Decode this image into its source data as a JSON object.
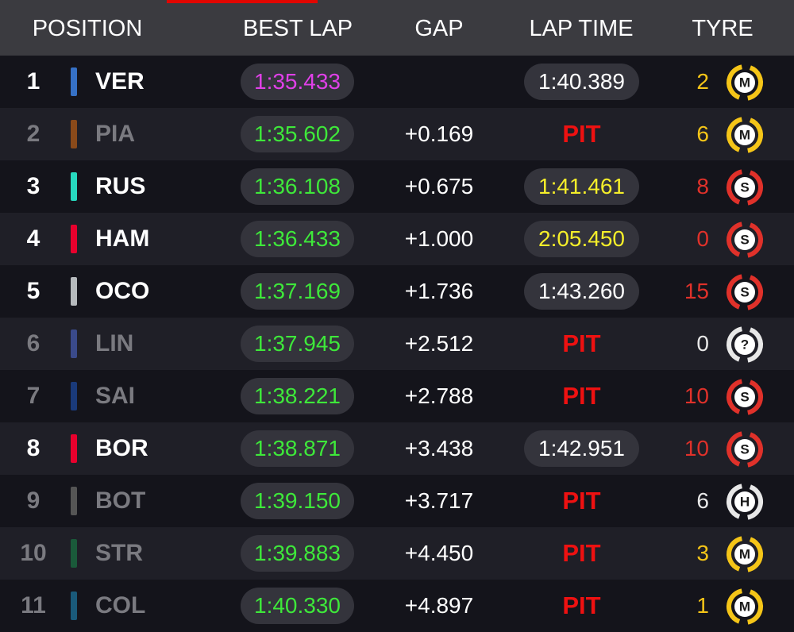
{
  "header": {
    "columns": [
      "POSITION",
      "BEST LAP",
      "GAP",
      "LAP TIME",
      "TYRE"
    ]
  },
  "rows": [
    {
      "position": "1",
      "team_color": "#3671c6",
      "driver": "VER",
      "dimmed": false,
      "best_lap": "1:35.433",
      "best_lap_color": "#e040e8",
      "gap": null,
      "lap_time": "1:40.389",
      "lap_time_color": "#ffffff",
      "lap_time_pill": true,
      "tyre_laps": "2",
      "tyre": "M",
      "tyre_color": "#f5c518"
    },
    {
      "position": "2",
      "team_color": "#8a4a1a",
      "driver": "PIA",
      "dimmed": true,
      "best_lap": "1:35.602",
      "best_lap_color": "#3ee83a",
      "gap": "+0.169",
      "lap_time": "PIT",
      "lap_time_color": "#ee1111",
      "lap_time_pill": false,
      "tyre_laps": "6",
      "tyre": "M",
      "tyre_color": "#f5c518"
    },
    {
      "position": "3",
      "team_color": "#27d9bf",
      "driver": "RUS",
      "dimmed": false,
      "best_lap": "1:36.108",
      "best_lap_color": "#3ee83a",
      "gap": "+0.675",
      "lap_time": "1:41.461",
      "lap_time_color": "#f5ee2a",
      "lap_time_pill": true,
      "tyre_laps": "8",
      "tyre": "S",
      "tyre_color": "#e0312a"
    },
    {
      "position": "4",
      "team_color": "#e8002d",
      "driver": "HAM",
      "dimmed": false,
      "best_lap": "1:36.433",
      "best_lap_color": "#3ee83a",
      "gap": "+1.000",
      "lap_time": "2:05.450",
      "lap_time_color": "#f5ee2a",
      "lap_time_pill": true,
      "tyre_laps": "0",
      "tyre": "S",
      "tyre_color": "#e0312a"
    },
    {
      "position": "5",
      "team_color": "#b6babd",
      "driver": "OCO",
      "dimmed": false,
      "best_lap": "1:37.169",
      "best_lap_color": "#3ee83a",
      "gap": "+1.736",
      "lap_time": "1:43.260",
      "lap_time_color": "#ffffff",
      "lap_time_pill": true,
      "tyre_laps": "15",
      "tyre": "S",
      "tyre_color": "#e0312a"
    },
    {
      "position": "6",
      "team_color": "#3a4a8a",
      "driver": "LIN",
      "dimmed": true,
      "best_lap": "1:37.945",
      "best_lap_color": "#3ee83a",
      "gap": "+2.512",
      "lap_time": "PIT",
      "lap_time_color": "#ee1111",
      "lap_time_pill": false,
      "tyre_laps": "0",
      "tyre": "?",
      "tyre_color": "#e8e8e8"
    },
    {
      "position": "7",
      "team_color": "#1a3a7a",
      "driver": "SAI",
      "dimmed": true,
      "best_lap": "1:38.221",
      "best_lap_color": "#3ee83a",
      "gap": "+2.788",
      "lap_time": "PIT",
      "lap_time_color": "#ee1111",
      "lap_time_pill": false,
      "tyre_laps": "10",
      "tyre": "S",
      "tyre_color": "#e0312a"
    },
    {
      "position": "8",
      "team_color": "#e8002d",
      "driver": "BOR",
      "dimmed": false,
      "best_lap": "1:38.871",
      "best_lap_color": "#3ee83a",
      "gap": "+3.438",
      "lap_time": "1:42.951",
      "lap_time_color": "#ffffff",
      "lap_time_pill": true,
      "tyre_laps": "10",
      "tyre": "S",
      "tyre_color": "#e0312a"
    },
    {
      "position": "9",
      "team_color": "#555555",
      "driver": "BOT",
      "dimmed": true,
      "best_lap": "1:39.150",
      "best_lap_color": "#3ee83a",
      "gap": "+3.717",
      "lap_time": "PIT",
      "lap_time_color": "#ee1111",
      "lap_time_pill": false,
      "tyre_laps": "6",
      "tyre": "H",
      "tyre_color": "#e8e8e8"
    },
    {
      "position": "10",
      "team_color": "#1a5a3a",
      "driver": "STR",
      "dimmed": true,
      "best_lap": "1:39.883",
      "best_lap_color": "#3ee83a",
      "gap": "+4.450",
      "lap_time": "PIT",
      "lap_time_color": "#ee1111",
      "lap_time_pill": false,
      "tyre_laps": "3",
      "tyre": "M",
      "tyre_color": "#f5c518"
    },
    {
      "position": "11",
      "team_color": "#1a5a7a",
      "driver": "COL",
      "dimmed": true,
      "best_lap": "1:40.330",
      "best_lap_color": "#3ee83a",
      "gap": "+4.897",
      "lap_time": "PIT",
      "lap_time_color": "#ee1111",
      "lap_time_pill": false,
      "tyre_laps": "1",
      "tyre": "M",
      "tyre_color": "#f5c518"
    }
  ]
}
